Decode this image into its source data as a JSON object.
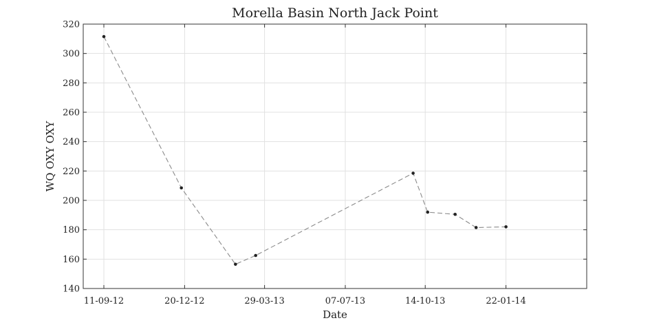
{
  "chart_data": {
    "type": "line",
    "title": "Morella Basin North Jack Point",
    "xlabel": "Date",
    "ylabel": "WQ OXY OXY",
    "xlim": [
      "2012-09-11",
      "2014-05-02"
    ],
    "ylim": [
      140,
      320
    ],
    "x_ticks": [
      "2012-09-11",
      "2012-12-20",
      "2013-03-29",
      "2013-07-07",
      "2013-10-14",
      "2014-01-22"
    ],
    "x_tick_labels": [
      "11-09-12",
      "20-12-12",
      "29-03-13",
      "07-07-13",
      "14-10-13",
      "22-01-14"
    ],
    "y_ticks": [
      140,
      160,
      180,
      200,
      220,
      240,
      260,
      280,
      300,
      320
    ],
    "grid": true,
    "series": [
      {
        "color": "#8a8a8a",
        "marker_color": "#222222",
        "x": [
          "2012-09-11",
          "2012-12-16",
          "2013-02-21",
          "2013-03-18",
          "2013-09-29",
          "2013-10-17",
          "2013-11-20",
          "2013-12-16",
          "2014-01-22"
        ],
        "y": [
          311.5,
          208.5,
          156.5,
          162.5,
          218.5,
          192,
          190.5,
          181.5,
          182
        ]
      }
    ]
  }
}
